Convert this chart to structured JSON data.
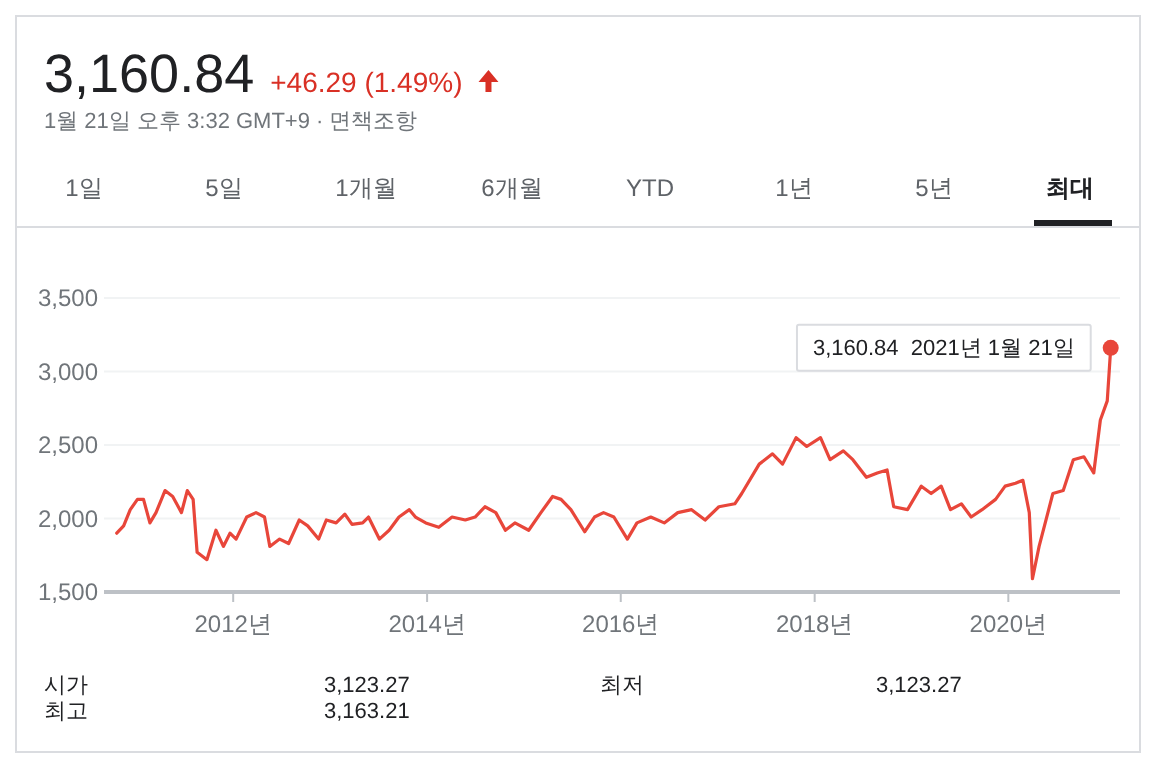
{
  "chart_data": {
    "type": "line",
    "title": "3,160.84",
    "subtitle": "+46.29 (1.49%)",
    "annotations": [
      "1월 21일 오후 3:32 GMT+9 · 면책조항",
      "1일",
      "5일",
      "1개월",
      "6개월",
      "YTD",
      "1년",
      "5년",
      "최대",
      "시가",
      "3,123.27",
      "최저",
      "3,123.27",
      "최고",
      "3,163.21",
      {
        "text": "3,160.84  2021년 1월 21일",
        "x": "2021-01-21",
        "y": 3160.84
      }
    ],
    "x": [
      "2010-10-19",
      "2010-11-14",
      "2010-12-09",
      "2011-01-05",
      "2011-01-28",
      "2011-02-21",
      "2011-03-16",
      "2011-04-19",
      "2011-05-18",
      "2011-06-20",
      "2011-07-12",
      "2011-08-03",
      "2011-08-18",
      "2011-09-24",
      "2011-10-28",
      "2011-11-25",
      "2011-12-20",
      "2012-01-12",
      "2012-02-21",
      "2012-03-27",
      "2012-04-28",
      "2012-05-18",
      "2012-06-24",
      "2012-07-28",
      "2012-09-06",
      "2012-10-08",
      "2012-11-18",
      "2012-12-17",
      "2013-01-23",
      "2013-02-25",
      "2013-03-24",
      "2013-05-03",
      "2013-05-25",
      "2013-07-05",
      "2013-08-11",
      "2013-09-17",
      "2013-10-26",
      "2013-11-18",
      "2013-12-27",
      "2014-02-14",
      "2014-04-05",
      "2014-05-25",
      "2014-07-01",
      "2014-08-07",
      "2014-09-17",
      "2014-10-23",
      "2014-11-28",
      "2015-01-19",
      "2015-03-06",
      "2015-04-19",
      "2015-05-21",
      "2015-06-27",
      "2015-08-18",
      "2015-09-24",
      "2015-10-28",
      "2015-12-06",
      "2016-01-26",
      "2016-03-02",
      "2016-04-23",
      "2016-06-13",
      "2016-08-03",
      "2016-09-24",
      "2016-11-14",
      "2017-01-05",
      "2017-03-06",
      "2017-04-01",
      "2017-06-06",
      "2017-07-26",
      "2017-09-02",
      "2017-10-23",
      "2017-12-02",
      "2018-01-23",
      "2018-02-28",
      "2018-04-19",
      "2018-05-25",
      "2018-07-15",
      "2018-08-25",
      "2018-10-01",
      "2018-10-26",
      "2018-12-17",
      "2019-02-07",
      "2019-03-16",
      "2019-04-23",
      "2019-05-28",
      "2019-07-08",
      "2019-08-14",
      "2019-09-24",
      "2019-11-14",
      "2019-12-20",
      "2020-01-28",
      "2020-02-25",
      "2020-03-20",
      "2020-04-01",
      "2020-04-26",
      "2020-06-17",
      "2020-07-26",
      "2020-09-02",
      "2020-10-12",
      "2020-11-18",
      "2020-12-13",
      "2021-01-08",
      "2021-01-21"
    ],
    "series": [
      {
        "color": "#e8463a",
        "values": [
          1900,
          1950,
          2060,
          2130,
          2130,
          1970,
          2040,
          2190,
          2150,
          2040,
          2190,
          2130,
          1770,
          1720,
          1920,
          1810,
          1900,
          1860,
          2010,
          2040,
          2010,
          1810,
          1860,
          1830,
          1990,
          1950,
          1860,
          1990,
          1970,
          2030,
          1960,
          1970,
          2010,
          1860,
          1920,
          2010,
          2060,
          2010,
          1970,
          1940,
          2010,
          1990,
          2010,
          2080,
          2040,
          1920,
          1970,
          1920,
          2040,
          2150,
          2130,
          2060,
          1910,
          2010,
          2040,
          2010,
          1860,
          1970,
          2010,
          1970,
          2040,
          2060,
          1990,
          2080,
          2100,
          2170,
          2370,
          2440,
          2370,
          2550,
          2490,
          2550,
          2400,
          2460,
          2400,
          2280,
          2310,
          2330,
          2080,
          2060,
          2220,
          2170,
          2220,
          2060,
          2100,
          2010,
          2060,
          2130,
          2220,
          2240,
          2260,
          2040,
          1590,
          1810,
          2170,
          2190,
          2400,
          2420,
          2310,
          2670,
          2800,
          3160.84
        ]
      }
    ],
    "ylim": [
      1500,
      3500
    ],
    "yticks": [
      {
        "value": 1500,
        "label": "1,500"
      },
      {
        "value": 2000,
        "label": "2,000"
      },
      {
        "value": 2500,
        "label": "2,500"
      },
      {
        "value": 3000,
        "label": "3,000"
      },
      {
        "value": 3500,
        "label": "3,500"
      }
    ],
    "xlim": [
      "2010-09-01",
      "2021-02-25"
    ],
    "xticks": [
      {
        "value": "2012-01-01",
        "label": "2012년"
      },
      {
        "value": "2014-01-01",
        "label": "2014년"
      },
      {
        "value": "2016-01-01",
        "label": "2016년"
      },
      {
        "value": "2018-01-01",
        "label": "2018년"
      },
      {
        "value": "2020-01-01",
        "label": "2020년"
      }
    ],
    "grid": "y",
    "marker": "none",
    "line_style": "solid"
  }
}
